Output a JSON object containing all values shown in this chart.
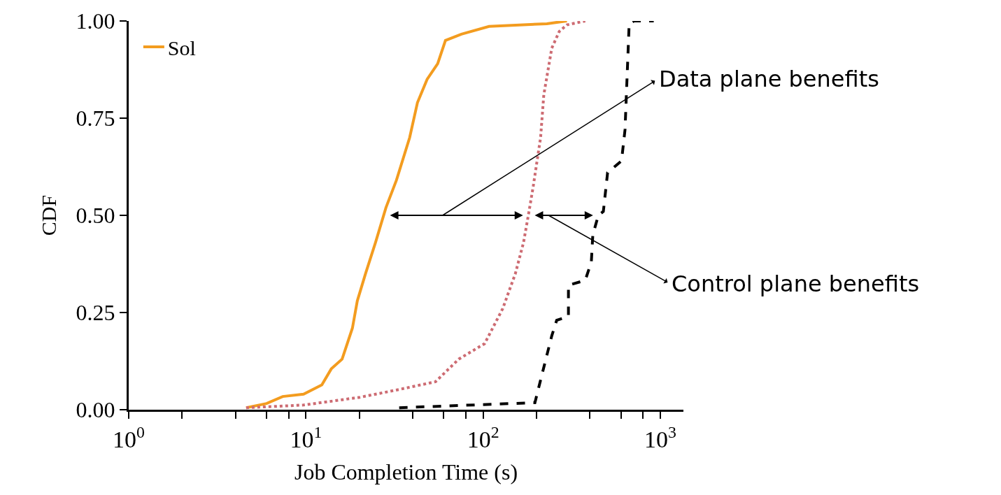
{
  "chart_data": {
    "type": "line",
    "xlabel": "Job Completion Time (s)",
    "ylabel": "CDF",
    "log": "x",
    "grid": false,
    "legend": "top left",
    "marker": "none",
    "xlim": [
      1,
      1350
    ],
    "xticks": [
      {
        "value": 1,
        "label": "10$^{0}$"
      },
      {
        "value": 2,
        "label": null
      },
      {
        "value": 4,
        "label": null
      },
      {
        "value": 6,
        "label": null
      },
      {
        "value": 8,
        "label": null
      },
      {
        "value": 10,
        "label": "10$^{1}$"
      },
      {
        "value": 20,
        "label": null
      },
      {
        "value": 40,
        "label": null
      },
      {
        "value": 60,
        "label": null
      },
      {
        "value": 80,
        "label": null
      },
      {
        "value": 100,
        "label": "10$^{2}$"
      },
      {
        "value": 200,
        "label": null
      },
      {
        "value": 400,
        "label": null
      },
      {
        "value": 600,
        "label": null
      },
      {
        "value": 800,
        "label": null
      },
      {
        "value": 1000,
        "label": "10$^{3}$"
      }
    ],
    "ylim": [
      0,
      1
    ],
    "yticks": [
      {
        "value": 0,
        "label": "0.00"
      },
      {
        "value": 0.25,
        "label": "0.25"
      },
      {
        "value": 0.5,
        "label": "0.50"
      },
      {
        "value": 0.75,
        "label": "0.75"
      },
      {
        "value": 1,
        "label": "1.00"
      }
    ],
    "series": [
      {
        "name": "Sol",
        "color": "#f39c1f",
        "line_style": "solid",
        "x": [
          4.6,
          6.0,
          7.4,
          9.7,
          12.3,
          13.9,
          16.0,
          18.3,
          19.5,
          21.7,
          24.7,
          28.3,
          32.4,
          38.5,
          42.6,
          48.3,
          55.4,
          61.3,
          75.4,
          108,
          229,
          297
        ],
        "values": [
          0.005,
          0.016,
          0.034,
          0.04,
          0.064,
          0.105,
          0.13,
          0.21,
          0.28,
          0.35,
          0.43,
          0.52,
          0.59,
          0.7,
          0.79,
          0.85,
          0.89,
          0.95,
          0.966,
          0.986,
          0.993,
          1.0
        ]
      },
      {
        "color": "#cd6b72",
        "line_style": "dotted",
        "x": [
          4.6,
          9.7,
          20.2,
          33.6,
          53.9,
          72.8,
          102,
          129,
          152,
          169,
          180,
          192,
          211,
          220,
          244,
          269,
          297,
          377
        ],
        "values": [
          0.005,
          0.012,
          0.032,
          0.052,
          0.072,
          0.13,
          0.17,
          0.26,
          0.35,
          0.43,
          0.5,
          0.576,
          0.7,
          0.81,
          0.93,
          0.973,
          0.99,
          1.0
        ]
      },
      {
        "color": "#000000",
        "line_style": "dashed",
        "x": [
          33.6,
          192,
          196,
          212,
          244,
          260,
          303,
          303,
          377,
          408,
          416,
          447,
          477,
          504,
          604,
          632,
          667,
          711,
          918
        ],
        "values": [
          0.005,
          0.018,
          0.018,
          0.08,
          0.19,
          0.23,
          0.24,
          0.32,
          0.333,
          0.38,
          0.45,
          0.5,
          0.51,
          0.61,
          0.64,
          0.72,
          0.993,
          1.0,
          1.0
        ]
      }
    ],
    "annotations": [
      "Data plane benefits",
      "Control plane benefits"
    ]
  }
}
